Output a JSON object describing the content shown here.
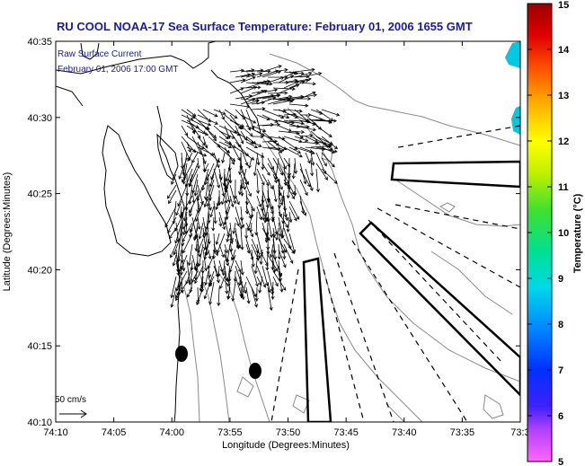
{
  "title": "RU COOL  NOAA-17  Sea Surface Temperature:  February 01, 2006 1655 GMT",
  "overlay": {
    "line1": "Raw Surface Current",
    "line2": "February 01, 2006 17:00 GMT"
  },
  "scale_label": "50 cm/s",
  "axes": {
    "xlabel": "Longitude (Degrees:Minutes)",
    "ylabel": "Latitude (Degrees:Minutes)",
    "xticks": [
      "74:10",
      "74:05",
      "74:00",
      "73:55",
      "73:50",
      "73:45",
      "73:40",
      "73:35",
      "73:3"
    ],
    "yticks": [
      "40:35",
      "40:30",
      "40:25",
      "40:20",
      "40:15",
      "40:10"
    ]
  },
  "colorbar": {
    "label": "Temperature (°C)",
    "ticks": [
      "15",
      "14",
      "13",
      "12",
      "11",
      "10",
      "9",
      "8",
      "7",
      "6",
      "5"
    ],
    "range": [
      5,
      15
    ]
  },
  "colors": {
    "title": "#1a1aa0",
    "overlay_text": "#1a1aa0",
    "land": "#ffffff",
    "sea_cold": "#00c8e0"
  }
}
